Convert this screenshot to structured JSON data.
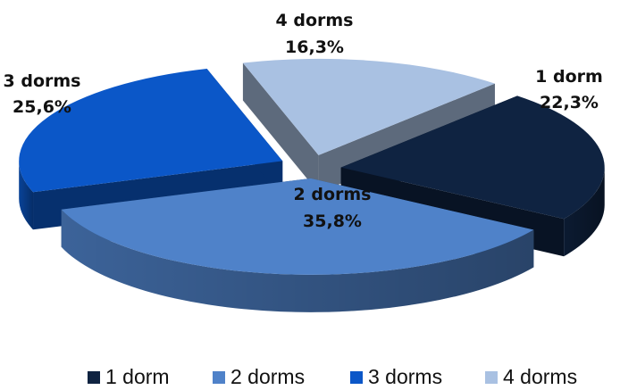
{
  "chart_data": {
    "type": "pie",
    "title": "",
    "categories": [
      "1 dorm",
      "2 dorms",
      "3 dorms",
      "4 dorms"
    ],
    "values": [
      22.3,
      35.8,
      25.6,
      16.3
    ],
    "value_labels": [
      "22,3%",
      "35,8%",
      "25,6%",
      "16,3%"
    ],
    "colors": [
      "#0f2341",
      "#4f82c9",
      "#0b57c8",
      "#a9c1e2"
    ],
    "style": "3d-exploded",
    "legend": {
      "position": "bottom",
      "entries": [
        "1 dorm",
        "2 dorms",
        "3 dorms",
        "4 dorms"
      ]
    }
  }
}
